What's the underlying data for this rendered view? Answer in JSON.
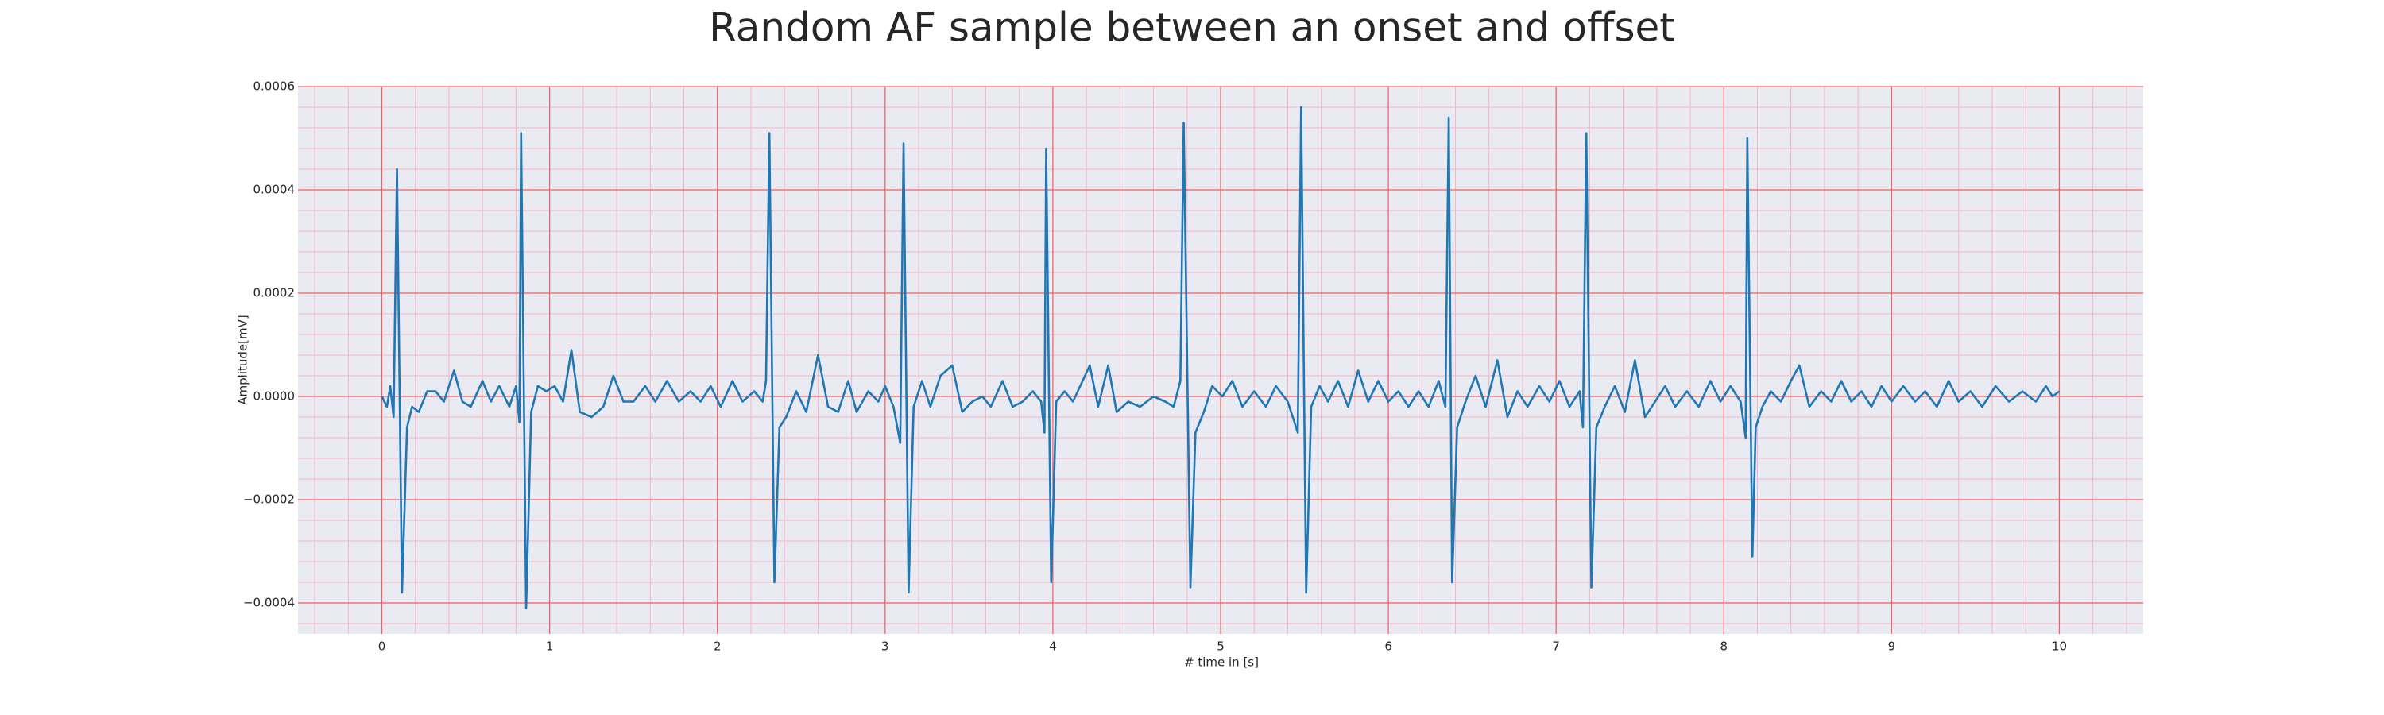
{
  "chart_data": {
    "type": "line",
    "title": "Random AF sample between an onset and offset",
    "x_label": "# time in [s]",
    "y_label": "Amplitude[mV]",
    "color": "#1f77b4",
    "xlim": [
      -0.5,
      10.5
    ],
    "ylim": [
      -0.00046,
      0.0006
    ],
    "xticks": [
      0,
      1,
      2,
      3,
      4,
      5,
      6,
      7,
      8,
      9,
      10
    ],
    "yticks": [
      {
        "value": -0.0004,
        "label": "−0.0004"
      },
      {
        "value": -0.0002,
        "label": "−0.0002"
      },
      {
        "value": 0,
        "label": "0.0000"
      },
      0.0002,
      0.0004,
      0.0006
    ],
    "grid": true,
    "minor_grid": true,
    "x": [
      0.0,
      0.03,
      0.05,
      0.07,
      0.09,
      0.12,
      0.15,
      0.18,
      0.22,
      0.27,
      0.32,
      0.37,
      0.43,
      0.48,
      0.53,
      0.6,
      0.65,
      0.7,
      0.76,
      0.8,
      0.82,
      0.83,
      0.86,
      0.89,
      0.93,
      0.98,
      1.03,
      1.08,
      1.13,
      1.18,
      1.25,
      1.32,
      1.38,
      1.44,
      1.5,
      1.57,
      1.63,
      1.7,
      1.77,
      1.84,
      1.9,
      1.96,
      2.02,
      2.09,
      2.15,
      2.22,
      2.27,
      2.29,
      2.31,
      2.34,
      2.37,
      2.41,
      2.47,
      2.53,
      2.6,
      2.66,
      2.72,
      2.78,
      2.83,
      2.9,
      2.96,
      3.0,
      3.05,
      3.09,
      3.11,
      3.14,
      3.17,
      3.22,
      3.27,
      3.33,
      3.4,
      3.46,
      3.52,
      3.58,
      3.63,
      3.7,
      3.76,
      3.82,
      3.88,
      3.93,
      3.95,
      3.96,
      3.99,
      4.02,
      4.07,
      4.12,
      4.22,
      4.27,
      4.33,
      4.38,
      4.45,
      4.52,
      4.6,
      4.67,
      4.72,
      4.76,
      4.78,
      4.82,
      4.85,
      4.9,
      4.95,
      5.01,
      5.07,
      5.13,
      5.2,
      5.27,
      5.33,
      5.4,
      5.46,
      5.48,
      5.51,
      5.54,
      5.59,
      5.64,
      5.7,
      5.76,
      5.82,
      5.88,
      5.94,
      6.0,
      6.06,
      6.12,
      6.18,
      6.24,
      6.3,
      6.34,
      6.36,
      6.38,
      6.41,
      6.46,
      6.52,
      6.58,
      6.65,
      6.71,
      6.77,
      6.83,
      6.9,
      6.96,
      7.02,
      7.08,
      7.14,
      7.16,
      7.18,
      7.21,
      7.24,
      7.29,
      7.35,
      7.41,
      7.47,
      7.53,
      7.59,
      7.65,
      7.71,
      7.78,
      7.85,
      7.92,
      7.98,
      8.04,
      8.1,
      8.13,
      8.14,
      8.17,
      8.19,
      8.23,
      8.28,
      8.34,
      8.4,
      8.45,
      8.51,
      8.58,
      8.64,
      8.7,
      8.76,
      8.82,
      8.88,
      8.94,
      9.0,
      9.07,
      9.14,
      9.2,
      9.27,
      9.34,
      9.4,
      9.47,
      9.54,
      9.62,
      9.7,
      9.78,
      9.86,
      9.92,
      9.96,
      10.0
    ],
    "values": [
      0,
      -2e-05,
      2e-05,
      -4e-05,
      0.00044,
      -0.00038,
      -6e-05,
      -2e-05,
      -3e-05,
      1e-05,
      1e-05,
      -1e-05,
      5e-05,
      -1e-05,
      -2e-05,
      3e-05,
      -1e-05,
      2e-05,
      -2e-05,
      2e-05,
      -5e-05,
      0.00051,
      -0.00041,
      -3e-05,
      2e-05,
      1e-05,
      2e-05,
      -1e-05,
      9e-05,
      -3e-05,
      -4e-05,
      -2e-05,
      4e-05,
      -1e-05,
      -1e-05,
      2e-05,
      -1e-05,
      3e-05,
      -1e-05,
      1e-05,
      -1e-05,
      2e-05,
      -2e-05,
      3e-05,
      -1e-05,
      1e-05,
      -1e-05,
      3e-05,
      0.00051,
      -0.00036,
      -6e-05,
      -4e-05,
      1e-05,
      -3e-05,
      8e-05,
      -2e-05,
      -3e-05,
      3e-05,
      -3e-05,
      1e-05,
      -1e-05,
      2e-05,
      -2e-05,
      -9e-05,
      0.00049,
      -0.00038,
      -2e-05,
      3e-05,
      -2e-05,
      4e-05,
      6e-05,
      -3e-05,
      -1e-05,
      0,
      -2e-05,
      3e-05,
      -2e-05,
      -1e-05,
      1e-05,
      -1e-05,
      -7e-05,
      0.00048,
      -0.00036,
      -1e-05,
      1e-05,
      -1e-05,
      6e-05,
      -2e-05,
      6e-05,
      -3e-05,
      -1e-05,
      -2e-05,
      0,
      -1e-05,
      -2e-05,
      3e-05,
      0.00053,
      -0.00037,
      -7e-05,
      -3e-05,
      2e-05,
      0,
      3e-05,
      -2e-05,
      1e-05,
      -2e-05,
      2e-05,
      -1e-05,
      -7e-05,
      0.00056,
      -0.00038,
      -2e-05,
      2e-05,
      -1e-05,
      3e-05,
      -2e-05,
      5e-05,
      -1e-05,
      3e-05,
      -1e-05,
      1e-05,
      -2e-05,
      1e-05,
      -2e-05,
      3e-05,
      -2e-05,
      0.00054,
      -0.00036,
      -6e-05,
      -1e-05,
      4e-05,
      -2e-05,
      7e-05,
      -4e-05,
      1e-05,
      -2e-05,
      2e-05,
      -1e-05,
      3e-05,
      -2e-05,
      1e-05,
      -6e-05,
      0.00051,
      -0.00037,
      -6e-05,
      -2e-05,
      2e-05,
      -3e-05,
      7e-05,
      -4e-05,
      -1e-05,
      2e-05,
      -2e-05,
      1e-05,
      -2e-05,
      3e-05,
      -1e-05,
      2e-05,
      -1e-05,
      -8e-05,
      0.0005,
      -0.00031,
      -6e-05,
      -2e-05,
      1e-05,
      -1e-05,
      3e-05,
      6e-05,
      -2e-05,
      1e-05,
      -1e-05,
      3e-05,
      -1e-05,
      1e-05,
      -2e-05,
      2e-05,
      -1e-05,
      2e-05,
      -1e-05,
      1e-05,
      -2e-05,
      3e-05,
      -1e-05,
      1e-05,
      -2e-05,
      2e-05,
      -1e-05,
      1e-05,
      -1e-05,
      2e-05,
      0,
      1e-05
    ]
  }
}
